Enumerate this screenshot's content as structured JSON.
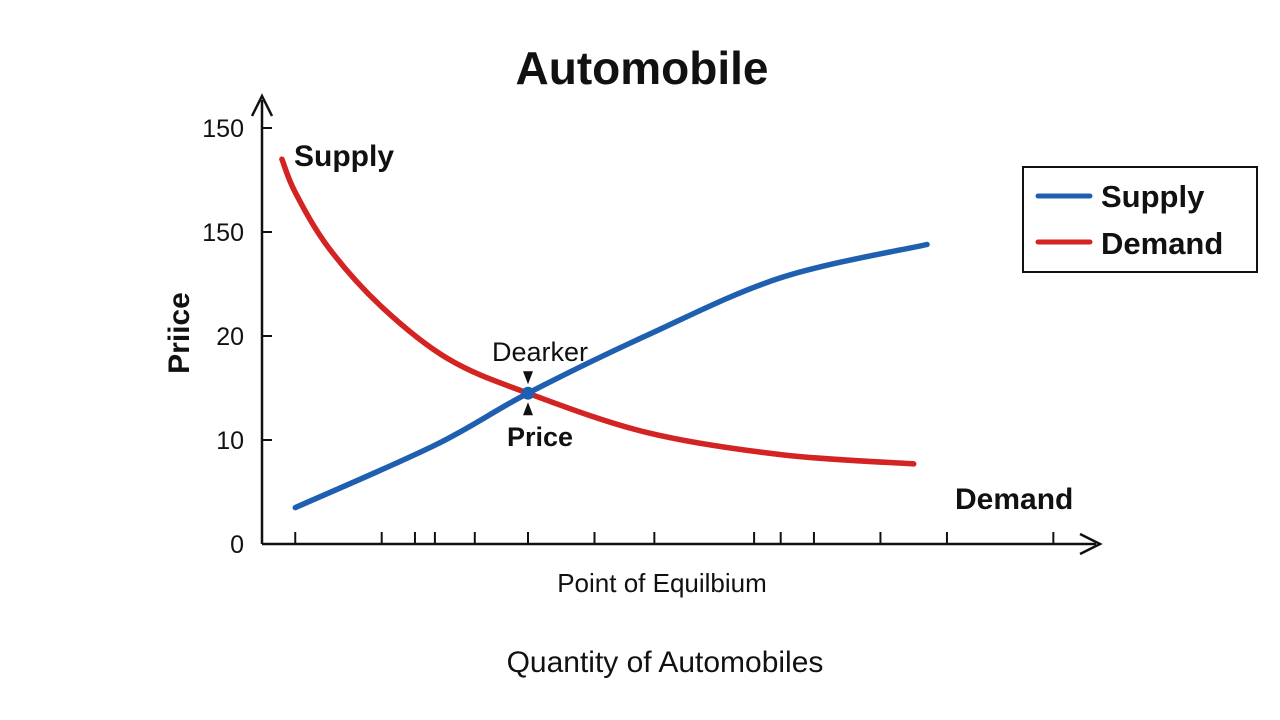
{
  "chart_data": {
    "type": "line",
    "title": "Automobile",
    "ylabel": "Priice",
    "x_sublabel": "Point of Equilbium",
    "xlabel": "Quantity of Automobiles",
    "y_ticks": [
      "0",
      "10",
      "20",
      "150",
      "150"
    ],
    "series": [
      {
        "name": "Supply",
        "color": "#1f5fb0",
        "points": [
          [
            0.5,
            0.35
          ],
          [
            2.6,
            0.95
          ],
          [
            4.0,
            1.45
          ],
          [
            5.8,
            2.01
          ],
          [
            7.8,
            2.56
          ],
          [
            10.0,
            2.88
          ]
        ]
      },
      {
        "name": "Demand",
        "color": "#d42323",
        "points": [
          [
            0.3,
            3.7
          ],
          [
            0.5,
            3.38
          ],
          [
            1.0,
            2.85
          ],
          [
            1.8,
            2.28
          ],
          [
            2.8,
            1.78
          ],
          [
            4.0,
            1.45
          ],
          [
            5.8,
            1.07
          ],
          [
            7.8,
            0.86
          ],
          [
            9.8,
            0.77
          ]
        ]
      }
    ],
    "equilibrium": {
      "x": 4.0,
      "y": 1.45
    },
    "curve_labels": {
      "top_left": "Supply",
      "bottom_right": "Demand"
    },
    "annotations": {
      "above": "Dearker",
      "below": "Price"
    },
    "legend": {
      "placement": "top-right",
      "entries": [
        "Supply",
        "Demand"
      ]
    },
    "grid": false
  }
}
